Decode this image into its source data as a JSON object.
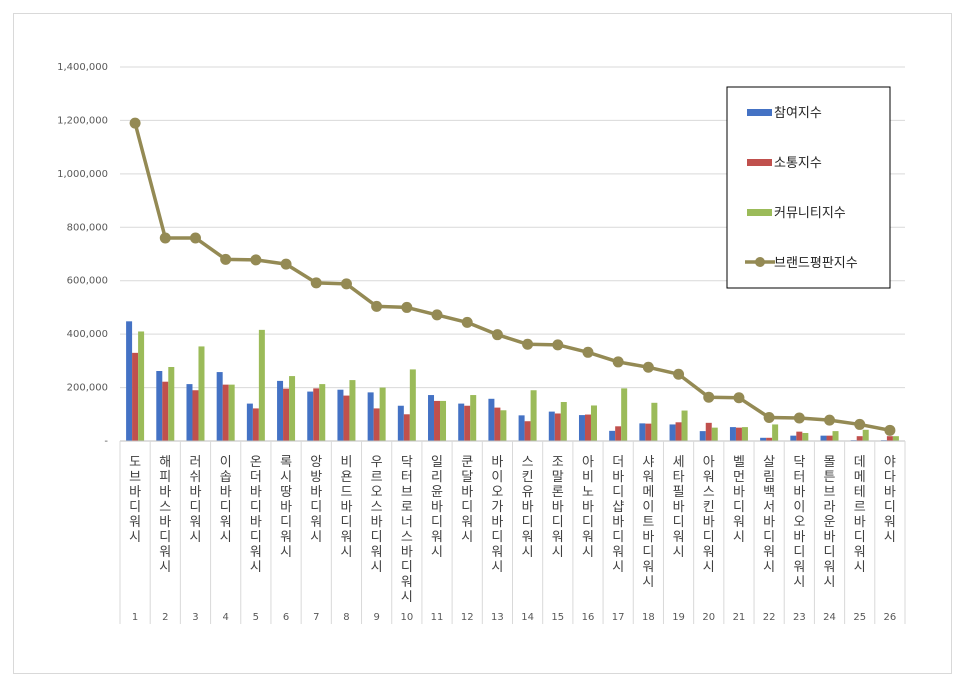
{
  "chart_data": {
    "type": "bar",
    "title": "",
    "xlabel": "",
    "ylabel": "",
    "ylim": [
      0,
      1400000
    ],
    "yticks": [
      {
        "value": 0,
        "label": "-"
      },
      {
        "value": 200000,
        "label": "200,000"
      },
      {
        "value": 400000,
        "label": "400,000"
      },
      {
        "value": 600000,
        "label": "600,000"
      },
      {
        "value": 800000,
        "label": "800,000"
      },
      {
        "value": 1000000,
        "label": "1,000,000"
      },
      {
        "value": 1200000,
        "label": "1,200,000"
      },
      {
        "value": 1400000,
        "label": "1,400,000"
      }
    ],
    "grid": true,
    "legend_position": "top-right",
    "categories": [
      "도브바디워시",
      "해피바스바디워시",
      "러쉬바디워시",
      "이솝바디워시",
      "온더바디바디워시",
      "록시땅바디워시",
      "앙방바디워시",
      "비욘드바디워시",
      "우르오스바디워시",
      "닥터브로너스바디워시",
      "일리윤바디워시",
      "쿤달바디워시",
      "바이오가바디워시",
      "스킨유바디워시",
      "조말론바디워시",
      "아비노바디워시",
      "더바디샵바디워시",
      "샤워메이트바디워시",
      "세타필바디워시",
      "아워스킨바디워시",
      "벨먼바디워시",
      "살림백서바디워시",
      "닥터바이오바디워시",
      "몰튼브라운바디워시",
      "데메테르바디워시",
      "야다바디워시"
    ],
    "index_labels": [
      "1",
      "2",
      "3",
      "4",
      "5",
      "6",
      "7",
      "8",
      "9",
      "10",
      "11",
      "12",
      "13",
      "14",
      "15",
      "16",
      "17",
      "18",
      "19",
      "20",
      "21",
      "22",
      "23",
      "24",
      "25",
      "26"
    ],
    "series": [
      {
        "name": "참여지수",
        "kind": "bar",
        "color": "#4472c4",
        "values": [
          448000,
          262000,
          213000,
          258000,
          140000,
          225000,
          185000,
          192000,
          182000,
          132000,
          172000,
          140000,
          158000,
          96000,
          110000,
          97000,
          38000,
          66000,
          62000,
          37000,
          52000,
          12000,
          20000,
          20000,
          3000,
          3000
        ]
      },
      {
        "name": "소통지수",
        "kind": "bar",
        "color": "#c0504d",
        "values": [
          330000,
          222000,
          190000,
          211000,
          122000,
          196000,
          197000,
          170000,
          122000,
          100000,
          150000,
          132000,
          125000,
          74000,
          103000,
          99000,
          55000,
          65000,
          70000,
          68000,
          50000,
          12000,
          35000,
          20000,
          18000,
          18000
        ]
      },
      {
        "name": "커뮤니티지수",
        "kind": "bar",
        "color": "#9bbb59",
        "values": [
          410000,
          277000,
          354000,
          211000,
          416000,
          243000,
          213000,
          228000,
          200000,
          268000,
          150000,
          172000,
          115000,
          190000,
          146000,
          133000,
          197000,
          143000,
          114000,
          50000,
          52000,
          62000,
          30000,
          37000,
          42000,
          18000
        ]
      },
      {
        "name": "브랜드평판지수",
        "kind": "line",
        "color": "#948a54",
        "values": [
          1190000,
          760000,
          760000,
          680000,
          678000,
          662000,
          592000,
          588000,
          504000,
          500000,
          472000,
          444000,
          398000,
          362000,
          360000,
          332000,
          296000,
          276000,
          250000,
          164000,
          162000,
          88000,
          86000,
          78000,
          62000,
          40000
        ]
      }
    ]
  }
}
